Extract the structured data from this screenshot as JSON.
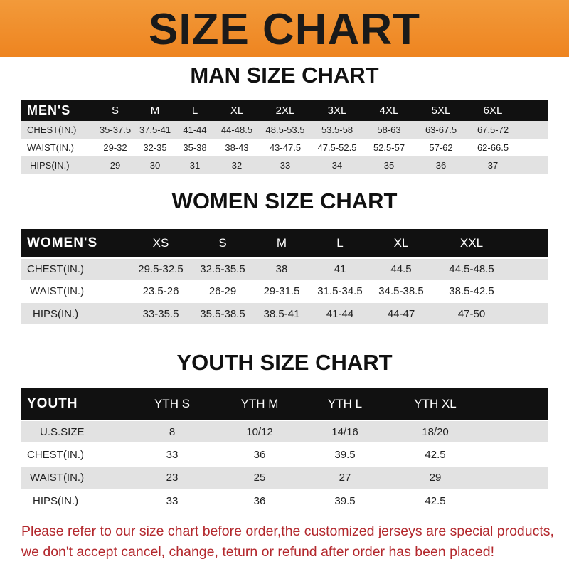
{
  "title": "SIZE CHART",
  "men": {
    "title": "MAN SIZE CHART",
    "header": "MEN'S",
    "sizes": [
      "S",
      "M",
      "L",
      "XL",
      "2XL",
      "3XL",
      "4XL",
      "5XL",
      "6XL"
    ],
    "rows": [
      {
        "label": "CHEST(IN.)",
        "values": [
          "35-37.5",
          "37.5-41",
          "41-44",
          "44-48.5",
          "48.5-53.5",
          "53.5-58",
          "58-63",
          "63-67.5",
          "67.5-72"
        ]
      },
      {
        "label": "WAIST(IN.)",
        "values": [
          "29-32",
          "32-35",
          "35-38",
          "38-43",
          "43-47.5",
          "47.5-52.5",
          "52.5-57",
          "57-62",
          "62-66.5"
        ]
      },
      {
        "label": "HIPS(IN.)",
        "values": [
          "29",
          "30",
          "31",
          "32",
          "33",
          "34",
          "35",
          "36",
          "37"
        ]
      }
    ]
  },
  "women": {
    "title": "WOMEN SIZE CHART",
    "header": "WOMEN'S",
    "sizes": [
      "XS",
      "S",
      "M",
      "L",
      "XL",
      "XXL"
    ],
    "rows": [
      {
        "label": "CHEST(IN.)",
        "values": [
          "29.5-32.5",
          "32.5-35.5",
          "38",
          "41",
          "44.5",
          "44.5-48.5"
        ]
      },
      {
        "label": "WAIST(IN.)",
        "values": [
          "23.5-26",
          "26-29",
          "29-31.5",
          "31.5-34.5",
          "34.5-38.5",
          "38.5-42.5"
        ]
      },
      {
        "label": "HIPS(IN.)",
        "values": [
          "33-35.5",
          "35.5-38.5",
          "38.5-41",
          "41-44",
          "44-47",
          "47-50"
        ]
      }
    ]
  },
  "youth": {
    "title": "YOUTH SIZE CHART",
    "header": "YOUTH",
    "sizes": [
      "YTH S",
      "YTH M",
      "YTH L",
      "YTH XL"
    ],
    "rows": [
      {
        "label": "U.S.SIZE",
        "values": [
          "8",
          "10/12",
          "14/16",
          "18/20"
        ]
      },
      {
        "label": "CHEST(IN.)",
        "values": [
          "33",
          "36",
          "39.5",
          "42.5"
        ]
      },
      {
        "label": "WAIST(IN.)",
        "values": [
          "23",
          "25",
          "27",
          "29"
        ]
      },
      {
        "label": "HIPS(IN.)",
        "values": [
          "33",
          "36",
          "39.5",
          "42.5"
        ]
      }
    ]
  },
  "note": "Please refer to our size chart before order,the customized jerseys are special products, we don't accept cancel, change, teturn or refund after order has been placed!",
  "colors": {
    "banner": "#ee8420",
    "header_row": "#111111",
    "stripe": "#e2e2e2",
    "note": "#b3282d"
  }
}
